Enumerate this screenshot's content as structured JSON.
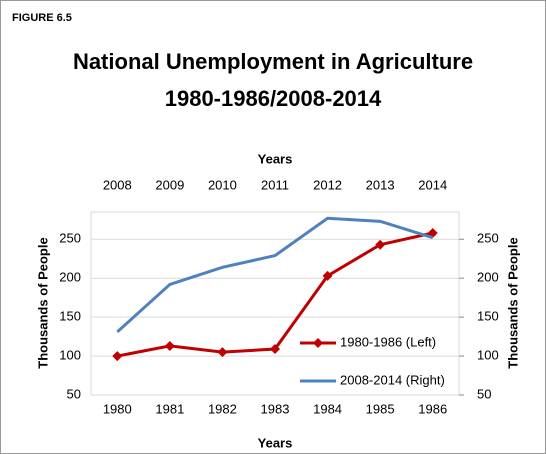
{
  "figure_label": "FIGURE 6.5",
  "chart_data": {
    "type": "line",
    "title": "National Unemployment in Agriculture",
    "subtitle": "1980-1986/2008-2014",
    "x_label": "Years",
    "x2_label": "Years",
    "y_label": "Thousands of People",
    "y2_label": "Thousands of People",
    "categories": [
      "1980",
      "1981",
      "1982",
      "1983",
      "1984",
      "1985",
      "1986"
    ],
    "x2_categories": [
      "2008",
      "2009",
      "2010",
      "2011",
      "2012",
      "2013",
      "2014"
    ],
    "ylim": [
      50,
      285
    ],
    "yticks": [
      50,
      100,
      150,
      200,
      250
    ],
    "y2lim": [
      50,
      285
    ],
    "y2ticks": [
      50,
      100,
      150,
      200,
      250
    ],
    "grid": true,
    "legend": "lower right",
    "series": [
      {
        "name": "1980-1986 (Left)",
        "color": "#c00000",
        "values": [
          100,
          113,
          105,
          109,
          203,
          243,
          258
        ]
      },
      {
        "name": "2008-2014 (Right)",
        "color": "#4f81bd",
        "axis": "y2",
        "values": [
          131,
          192,
          214,
          229,
          277,
          273,
          252
        ]
      }
    ]
  }
}
